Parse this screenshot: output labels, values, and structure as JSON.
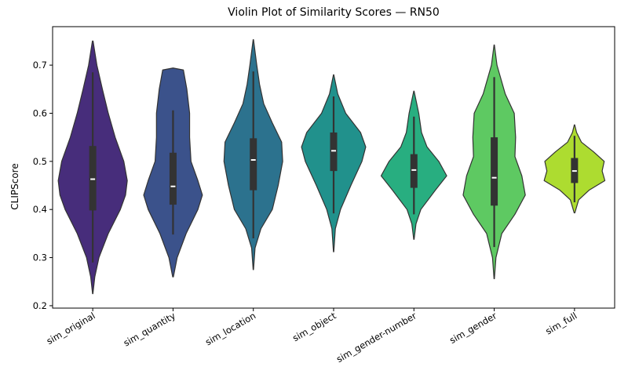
{
  "chart_data": {
    "type": "violin",
    "title": "Violin Plot of Similarity Scores — RN50",
    "xlabel": "",
    "ylabel": "CLIPScore",
    "ylim": [
      0.195,
      0.78
    ],
    "yticks": [
      "0.2",
      "0.3",
      "0.4",
      "0.5",
      "0.6",
      "0.7"
    ],
    "grid": false,
    "categories": [
      "sim_original",
      "sim_quantity",
      "sim_location",
      "sim_object",
      "sim_gender-number",
      "sim_gender",
      "sim_full"
    ],
    "colors": [
      "#472d7b",
      "#3b528b",
      "#2c728e",
      "#21918c",
      "#28ae80",
      "#5ec962",
      "#addc30"
    ],
    "violins": [
      {
        "name": "sim_original",
        "min": 0.29,
        "q1": 0.398,
        "median": 0.463,
        "q3": 0.532,
        "max": 0.685,
        "kde_min": 0.225,
        "kde_max": 0.75,
        "density": [
          [
            0.225,
            0.005
          ],
          [
            0.26,
            0.06
          ],
          [
            0.3,
            0.18
          ],
          [
            0.35,
            0.45
          ],
          [
            0.4,
            0.8
          ],
          [
            0.43,
            0.95
          ],
          [
            0.46,
            1.0
          ],
          [
            0.5,
            0.9
          ],
          [
            0.55,
            0.65
          ],
          [
            0.6,
            0.45
          ],
          [
            0.65,
            0.28
          ],
          [
            0.7,
            0.12
          ],
          [
            0.75,
            0.01
          ]
        ]
      },
      {
        "name": "sim_quantity",
        "min": 0.348,
        "q1": 0.41,
        "median": 0.448,
        "q3": 0.518,
        "max": 0.606,
        "kde_min": 0.26,
        "kde_max": 0.694,
        "density": [
          [
            0.26,
            0.01
          ],
          [
            0.3,
            0.12
          ],
          [
            0.35,
            0.38
          ],
          [
            0.4,
            0.72
          ],
          [
            0.43,
            0.85
          ],
          [
            0.46,
            0.72
          ],
          [
            0.5,
            0.52
          ],
          [
            0.55,
            0.48
          ],
          [
            0.6,
            0.48
          ],
          [
            0.65,
            0.4
          ],
          [
            0.69,
            0.3
          ],
          [
            0.694,
            0.0
          ]
        ]
      },
      {
        "name": "sim_location",
        "min": 0.34,
        "q1": 0.44,
        "median": 0.503,
        "q3": 0.548,
        "max": 0.687,
        "kde_min": 0.275,
        "kde_max": 0.753,
        "density": [
          [
            0.275,
            0.005
          ],
          [
            0.32,
            0.05
          ],
          [
            0.36,
            0.22
          ],
          [
            0.4,
            0.55
          ],
          [
            0.45,
            0.72
          ],
          [
            0.5,
            0.85
          ],
          [
            0.54,
            0.82
          ],
          [
            0.58,
            0.55
          ],
          [
            0.62,
            0.3
          ],
          [
            0.66,
            0.18
          ],
          [
            0.7,
            0.1
          ],
          [
            0.753,
            0.005
          ]
        ]
      },
      {
        "name": "sim_object",
        "min": 0.392,
        "q1": 0.48,
        "median": 0.522,
        "q3": 0.56,
        "max": 0.635,
        "kde_min": 0.312,
        "kde_max": 0.68,
        "density": [
          [
            0.312,
            0.005
          ],
          [
            0.36,
            0.05
          ],
          [
            0.4,
            0.2
          ],
          [
            0.45,
            0.5
          ],
          [
            0.5,
            0.82
          ],
          [
            0.53,
            0.93
          ],
          [
            0.56,
            0.78
          ],
          [
            0.6,
            0.35
          ],
          [
            0.64,
            0.12
          ],
          [
            0.68,
            0.005
          ]
        ]
      },
      {
        "name": "sim_gender-number",
        "min": 0.39,
        "q1": 0.445,
        "median": 0.482,
        "q3": 0.515,
        "max": 0.593,
        "kde_min": 0.338,
        "kde_max": 0.646,
        "density": [
          [
            0.338,
            0.005
          ],
          [
            0.37,
            0.06
          ],
          [
            0.4,
            0.2
          ],
          [
            0.44,
            0.62
          ],
          [
            0.47,
            0.95
          ],
          [
            0.5,
            0.72
          ],
          [
            0.53,
            0.38
          ],
          [
            0.56,
            0.22
          ],
          [
            0.6,
            0.14
          ],
          [
            0.646,
            0.005
          ]
        ]
      },
      {
        "name": "sim_gender",
        "min": 0.322,
        "q1": 0.408,
        "median": 0.466,
        "q3": 0.55,
        "max": 0.675,
        "kde_min": 0.256,
        "kde_max": 0.742,
        "density": [
          [
            0.256,
            0.005
          ],
          [
            0.3,
            0.05
          ],
          [
            0.35,
            0.22
          ],
          [
            0.39,
            0.6
          ],
          [
            0.43,
            0.9
          ],
          [
            0.47,
            0.8
          ],
          [
            0.51,
            0.6
          ],
          [
            0.55,
            0.62
          ],
          [
            0.6,
            0.58
          ],
          [
            0.64,
            0.32
          ],
          [
            0.7,
            0.08
          ],
          [
            0.742,
            0.005
          ]
        ]
      },
      {
        "name": "sim_full",
        "min": 0.415,
        "q1": 0.455,
        "median": 0.48,
        "q3": 0.507,
        "max": 0.553,
        "kde_min": 0.393,
        "kde_max": 0.576,
        "density": [
          [
            0.393,
            0.01
          ],
          [
            0.42,
            0.12
          ],
          [
            0.44,
            0.42
          ],
          [
            0.46,
            0.88
          ],
          [
            0.48,
            0.8
          ],
          [
            0.5,
            0.86
          ],
          [
            0.52,
            0.55
          ],
          [
            0.54,
            0.2
          ],
          [
            0.56,
            0.06
          ],
          [
            0.576,
            0.005
          ]
        ]
      }
    ]
  }
}
